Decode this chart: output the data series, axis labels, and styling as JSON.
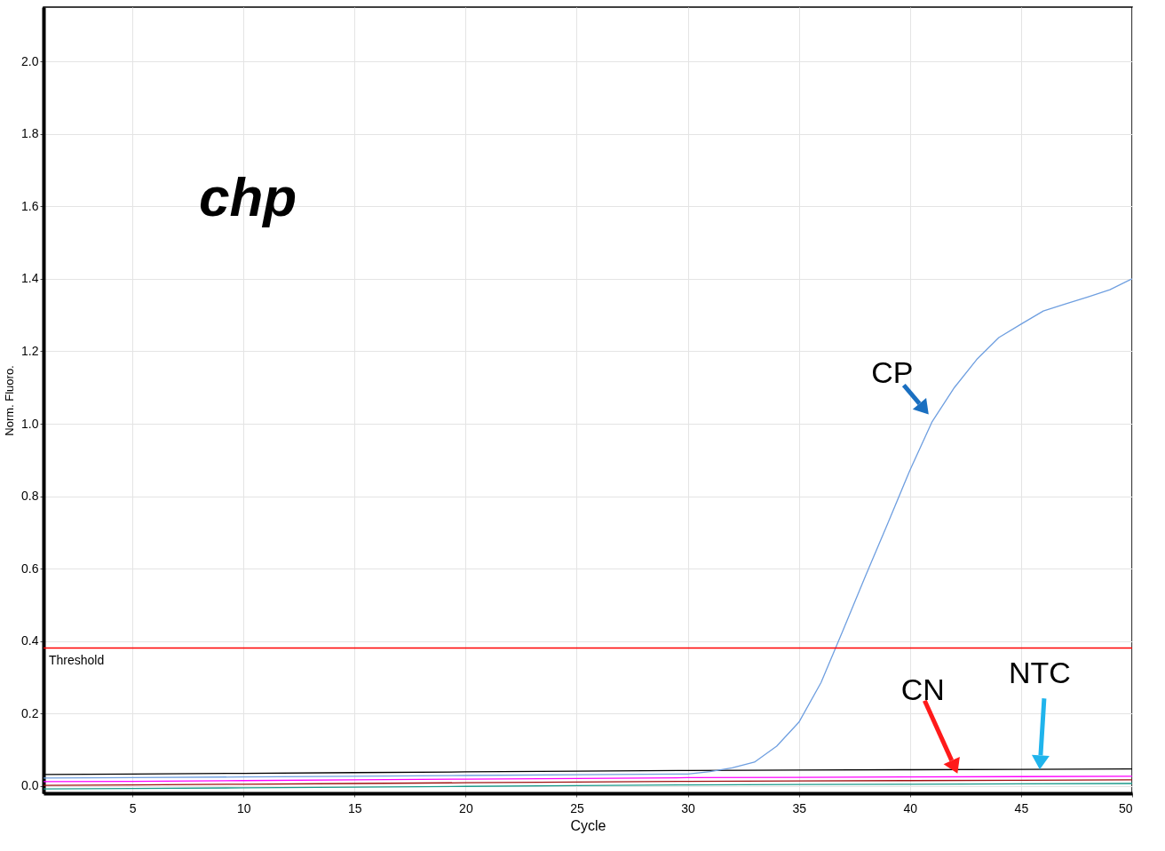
{
  "chart_data": {
    "type": "line",
    "xlabel": "Cycle",
    "ylabel": "Norm. Fluoro.",
    "xlim": [
      1,
      50
    ],
    "ylim": [
      -0.02,
      2.15
    ],
    "xticks": [
      5,
      10,
      15,
      20,
      25,
      30,
      35,
      40,
      45,
      50
    ],
    "yticks": [
      {
        "value": 0,
        "label": "0.0"
      },
      0.2,
      0.4,
      0.6,
      0.8,
      {
        "value": 1,
        "label": "1.0"
      },
      1.2,
      1.4,
      1.6,
      1.8,
      {
        "value": 2,
        "label": "2.0"
      }
    ],
    "grid": true,
    "legend": false,
    "marker": "none",
    "line_style": "solid",
    "series": [
      {
        "color": "#1a9a8a",
        "x": [
          1,
          5,
          10,
          15,
          20,
          25,
          30,
          35,
          40,
          45,
          50
        ],
        "values": [
          -0.008,
          -0.007,
          -0.005,
          -0.003,
          -0.001,
          0.001,
          0.003,
          0.004,
          0.005,
          0.006,
          0.007
        ]
      },
      {
        "color": "#a01010",
        "x": [
          1,
          5,
          10,
          15,
          20,
          25,
          30,
          35,
          40,
          45,
          50
        ],
        "values": [
          0.002,
          0.003,
          0.005,
          0.007,
          0.009,
          0.011,
          0.013,
          0.014,
          0.015,
          0.016,
          0.017
        ]
      },
      {
        "color": "#ff00ff",
        "x": [
          1,
          5,
          10,
          15,
          20,
          25,
          30,
          35,
          40,
          45,
          50
        ],
        "values": [
          0.012,
          0.013,
          0.015,
          0.017,
          0.019,
          0.021,
          0.023,
          0.024,
          0.025,
          0.026,
          0.027
        ]
      },
      {
        "color": "#000000",
        "x": [
          1,
          5,
          10,
          15,
          20,
          25,
          30,
          35,
          40,
          45,
          50
        ],
        "values": [
          0.032,
          0.033,
          0.035,
          0.037,
          0.039,
          0.041,
          0.043,
          0.044,
          0.045,
          0.046,
          0.047
        ]
      },
      {
        "color": "#6f9fe0",
        "x": [
          1,
          5,
          10,
          15,
          20,
          25,
          30,
          31,
          32,
          33,
          34,
          35,
          36,
          37,
          38,
          39,
          40,
          41,
          42,
          43,
          44,
          45,
          46,
          47,
          48,
          49,
          50
        ],
        "values": [
          0.022,
          0.023,
          0.025,
          0.027,
          0.029,
          0.031,
          0.033,
          0.04,
          0.05,
          0.066,
          0.11,
          0.176,
          0.286,
          0.432,
          0.58,
          0.725,
          0.872,
          1.006,
          1.1,
          1.177,
          1.238,
          1.275,
          1.311,
          1.331,
          1.35,
          1.37,
          1.4
        ]
      }
    ],
    "ref_lines": [
      {
        "axis": "y",
        "value": 0.381,
        "label": "Threshold",
        "color": "#ff0000"
      }
    ],
    "annotations": [
      "chp",
      {
        "text": "CP",
        "x": 41,
        "y": 1.006
      },
      {
        "text": "CN",
        "x": 42.3,
        "y": 0.015
      },
      {
        "text": "NTC",
        "x": 46,
        "y": 0.026
      }
    ]
  }
}
